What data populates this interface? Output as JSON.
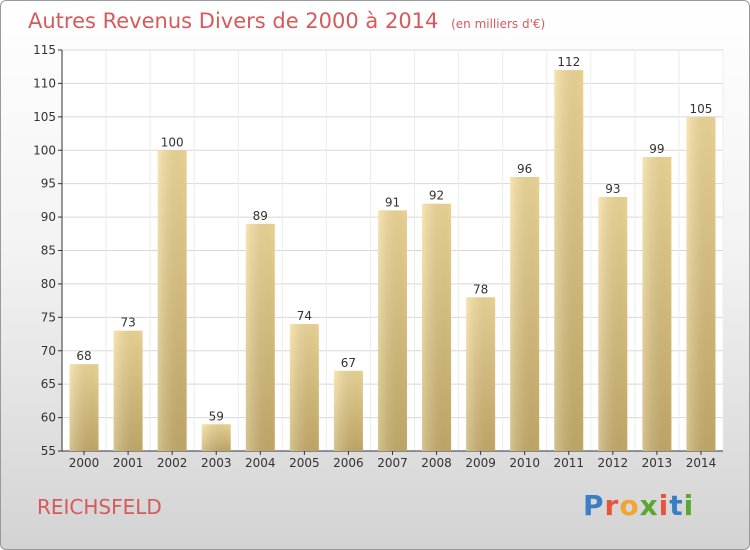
{
  "title": "Autres Revenus Divers de 2000 à 2014",
  "subtitle": "(en milliers d'€)",
  "place": "REICHSFELD",
  "logo": "Proxiti",
  "colors": {
    "title": "#d65a5a",
    "bar_light": "#f4dc9a",
    "bar_dark": "#c8ae6a",
    "grid": "#d8d8d8"
  },
  "chart_data": {
    "type": "bar",
    "categories": [
      "2000",
      "2001",
      "2002",
      "2003",
      "2004",
      "2005",
      "2006",
      "2007",
      "2008",
      "2009",
      "2010",
      "2011",
      "2012",
      "2013",
      "2014"
    ],
    "values": [
      68,
      73,
      100,
      59,
      89,
      74,
      67,
      91,
      92,
      78,
      96,
      112,
      93,
      99,
      105
    ],
    "ylim": [
      55,
      115
    ],
    "yticks": [
      55,
      60,
      65,
      70,
      75,
      80,
      85,
      90,
      95,
      100,
      105,
      110,
      115
    ],
    "grid": true,
    "xlabel": "",
    "ylabel": ""
  }
}
